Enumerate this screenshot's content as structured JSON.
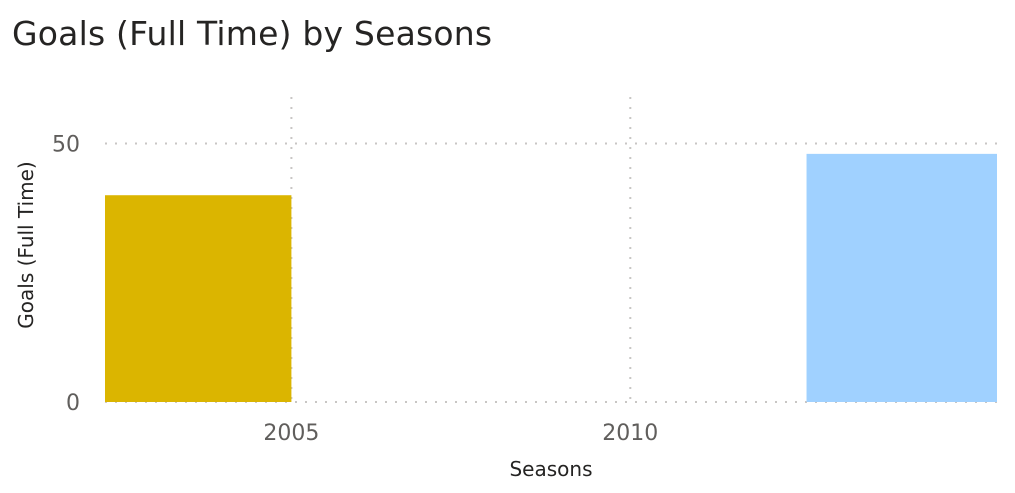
{
  "chart_data": {
    "type": "bar",
    "title": "Goals (Full Time) by Seasons",
    "xlabel": "Seasons",
    "ylabel": "Goals (Full Time)",
    "x_ticks": [
      2005,
      2010
    ],
    "y_ticks": [
      0,
      50
    ],
    "ylim": [
      0,
      59
    ],
    "xlim": [
      2002.25,
      2015.41
    ],
    "grid": true,
    "bars": [
      {
        "x_start": 2002.25,
        "x_end": 2005.0,
        "value": 40,
        "color": "#DBB500"
      },
      {
        "x_start": 2012.6,
        "x_end": 2015.41,
        "value": 48,
        "color": "#A0D1FF"
      }
    ]
  }
}
